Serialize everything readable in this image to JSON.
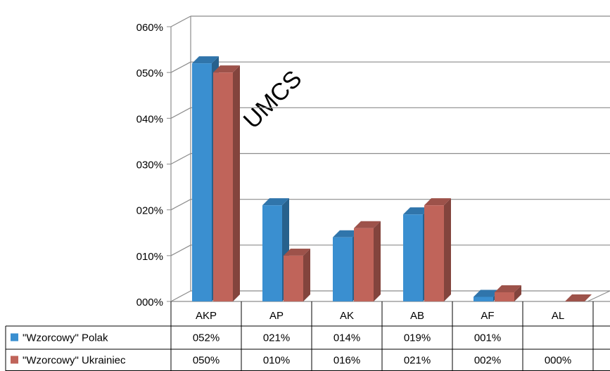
{
  "watermark": "UMCS",
  "colors": {
    "series1": "#3a8fd0",
    "series2": "#c0645a",
    "grid": "#8c8c8c"
  },
  "chart_data": {
    "type": "bar",
    "categories": [
      "AKP",
      "AP",
      "AK",
      "AB",
      "AF",
      "AL"
    ],
    "series": [
      {
        "name": "\"Wzorcowy\" Polak",
        "values": [
          52,
          21,
          14,
          19,
          1,
          null
        ],
        "labels": [
          "052%",
          "021%",
          "014%",
          "019%",
          "001%",
          ""
        ]
      },
      {
        "name": "\"Wzorcowy\" Ukrainiec",
        "values": [
          50,
          10,
          16,
          21,
          2,
          0
        ],
        "labels": [
          "050%",
          "010%",
          "016%",
          "021%",
          "002%",
          "000%"
        ]
      }
    ],
    "ylim": [
      0,
      60
    ],
    "yticks": [
      "000%",
      "010%",
      "020%",
      "030%",
      "040%",
      "050%",
      "060%"
    ],
    "grid": true,
    "legend": "data table below chart"
  }
}
